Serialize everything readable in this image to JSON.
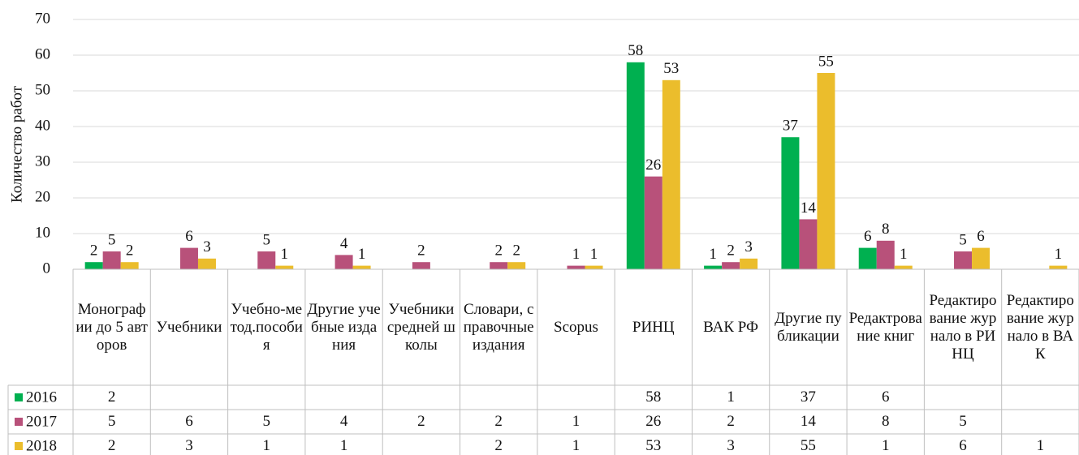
{
  "chart_data": {
    "type": "bar",
    "y_label": "Количество работ",
    "categories": [
      "Монографии до 5 авторов",
      "Учебники",
      "Учебно-метод.пособия",
      "Другие учебные издания",
      "Учебники средней школы",
      "Словари, справочные издания",
      "Scopus",
      "РИНЦ",
      "ВАК РФ",
      "Другие публикации",
      "Редактрование книг",
      "Редактирование журнало в РИНЦ",
      "Редактирование журнало в ВАК"
    ],
    "series": [
      {
        "name": "2016",
        "color": "#00b050",
        "values": [
          2,
          null,
          null,
          null,
          null,
          null,
          null,
          58,
          1,
          37,
          6,
          null,
          null
        ]
      },
      {
        "name": "2017",
        "color": "#b8517a",
        "values": [
          5,
          6,
          5,
          4,
          2,
          2,
          1,
          26,
          2,
          14,
          8,
          5,
          null
        ]
      },
      {
        "name": "2018",
        "color": "#ebbd2c",
        "values": [
          2,
          3,
          1,
          1,
          null,
          2,
          1,
          53,
          3,
          55,
          1,
          6,
          1
        ]
      }
    ],
    "ylim": [
      0,
      70
    ],
    "yticks": [
      0,
      10,
      20,
      30,
      40,
      50,
      60,
      70
    ],
    "grid": true
  }
}
